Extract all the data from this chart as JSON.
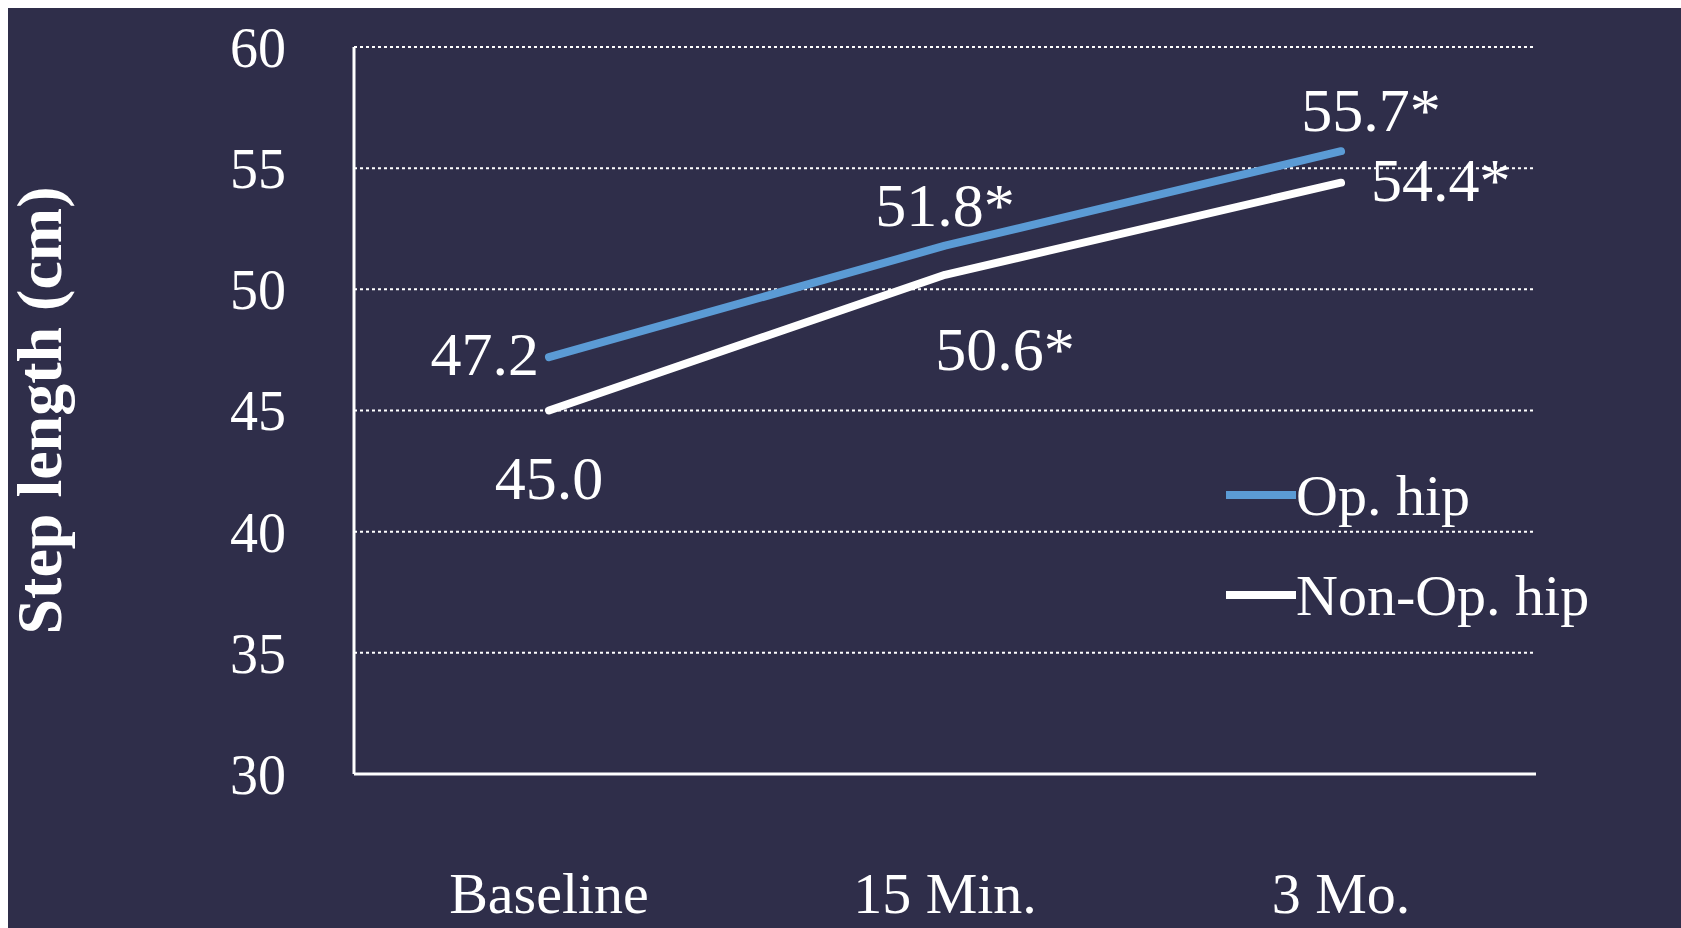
{
  "chart_data": {
    "type": "line",
    "ylabel": "Step length (cm)",
    "categories": [
      "Baseline",
      "15 Min.",
      "3 Mo."
    ],
    "series": [
      {
        "name": "Op. hip",
        "color": "#5b9bd5",
        "values": [
          47.2,
          51.8,
          55.7
        ],
        "value_labels": [
          "47.2",
          "51.8*",
          "55.7*"
        ]
      },
      {
        "name": "Non-Op. hip",
        "color": "#ffffff",
        "values": [
          45.0,
          50.6,
          54.4
        ],
        "value_labels": [
          "45.0",
          "50.6*",
          "54.4*"
        ]
      }
    ],
    "ylim": [
      30,
      60
    ],
    "yticks": [
      30,
      35,
      40,
      45,
      50,
      55,
      60
    ],
    "grid": "y",
    "legend": "right",
    "marker": "none",
    "line_style": "solid"
  }
}
